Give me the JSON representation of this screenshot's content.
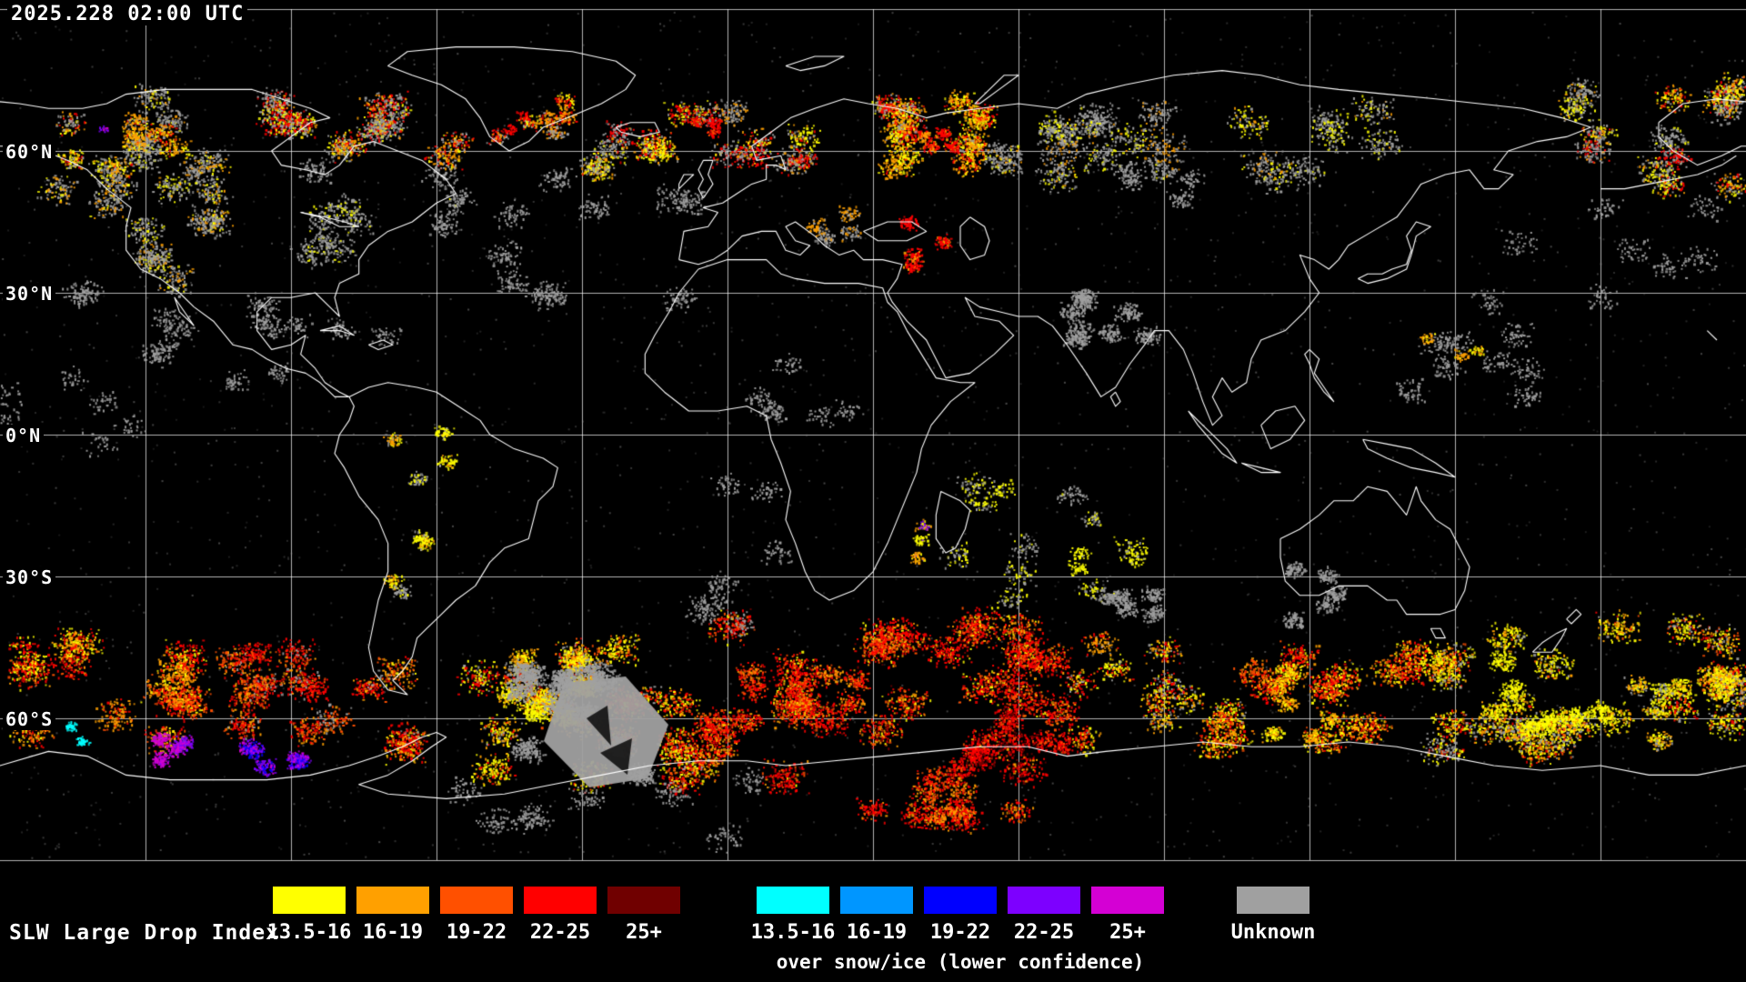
{
  "map": {
    "timestamp": "2025.228 02:00 UTC",
    "latitude_labels": [
      "60°N",
      "30°N",
      "0°N",
      "30°S",
      "60°S"
    ]
  },
  "legend": {
    "title": "SLW Large Drop Index",
    "groups": [
      {
        "name": "standard",
        "items": [
          {
            "label": "13.5-16",
            "color": "#ffff00"
          },
          {
            "label": "16-19",
            "color": "#ffa000"
          },
          {
            "label": "19-22",
            "color": "#ff5000"
          },
          {
            "label": "22-25",
            "color": "#ff0000"
          },
          {
            "label": "25+",
            "color": "#700000"
          }
        ]
      },
      {
        "name": "snow-ice",
        "caption": "over snow/ice (lower confidence)",
        "items": [
          {
            "label": "13.5-16",
            "color": "#00ffff"
          },
          {
            "label": "16-19",
            "color": "#0096ff"
          },
          {
            "label": "19-22",
            "color": "#0000ff"
          },
          {
            "label": "22-25",
            "color": "#7d00ff"
          },
          {
            "label": "25+",
            "color": "#d400d4"
          }
        ]
      }
    ],
    "unknown": {
      "label": "Unknown",
      "color": "#a0a0a0"
    }
  }
}
